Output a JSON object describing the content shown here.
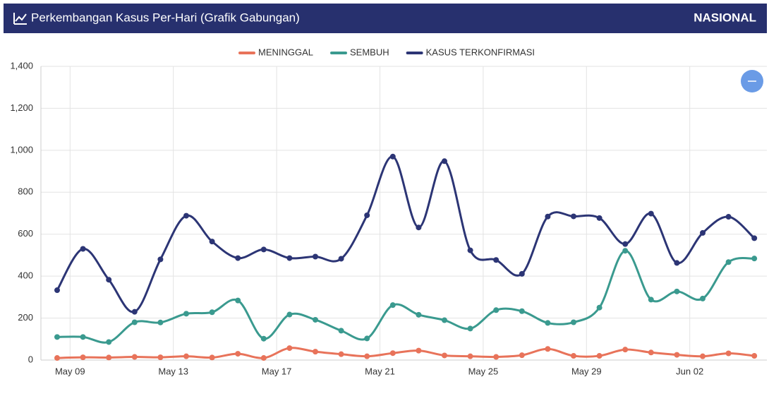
{
  "header": {
    "title": "Perkembangan Kasus Per-Hari (Grafik Gabungan)",
    "region": "NASIONAL"
  },
  "chart_data": {
    "type": "line",
    "categories": [
      "May 09",
      null,
      null,
      null,
      "May 13",
      null,
      null,
      null,
      "May 17",
      null,
      null,
      null,
      "May 21",
      null,
      null,
      null,
      "May 25",
      null,
      null,
      null,
      "May 29",
      null,
      null,
      null,
      "Jun 02",
      null,
      null,
      null
    ],
    "series": [
      {
        "name": "MENINGGAL",
        "color": "#e8735a",
        "values": [
          10,
          13,
          12,
          15,
          13,
          18,
          12,
          30,
          10,
          57,
          40,
          28,
          18,
          33,
          45,
          22,
          18,
          15,
          23,
          53,
          20,
          20,
          50,
          36,
          25,
          18,
          32,
          20
        ]
      },
      {
        "name": "SEMBUH",
        "color": "#3a9a8f",
        "values": [
          110,
          110,
          86,
          180,
          179,
          221,
          228,
          284,
          102,
          217,
          192,
          140,
          103,
          262,
          216,
          190,
          150,
          238,
          233,
          177,
          180,
          250,
          521,
          288,
          327,
          293,
          467,
          484
        ]
      },
      {
        "name": "KASUS TERKONFIRMASI",
        "color": "#2c3575",
        "values": [
          333,
          530,
          383,
          230,
          480,
          688,
          565,
          486,
          527,
          486,
          493,
          483,
          690,
          970,
          632,
          948,
          523,
          477,
          411,
          684,
          685,
          677,
          553,
          698,
          463,
          606,
          683,
          581
        ]
      }
    ],
    "ylim": [
      0,
      1400
    ],
    "yticks": [
      0,
      {
        "value": 200,
        "label": "200"
      },
      400,
      600,
      800,
      {
        "value": 1000,
        "label": "1,000"
      },
      {
        "value": 1200,
        "label": "1,200"
      },
      {
        "value": 1400,
        "label": "1,400"
      }
    ],
    "grid": true
  }
}
